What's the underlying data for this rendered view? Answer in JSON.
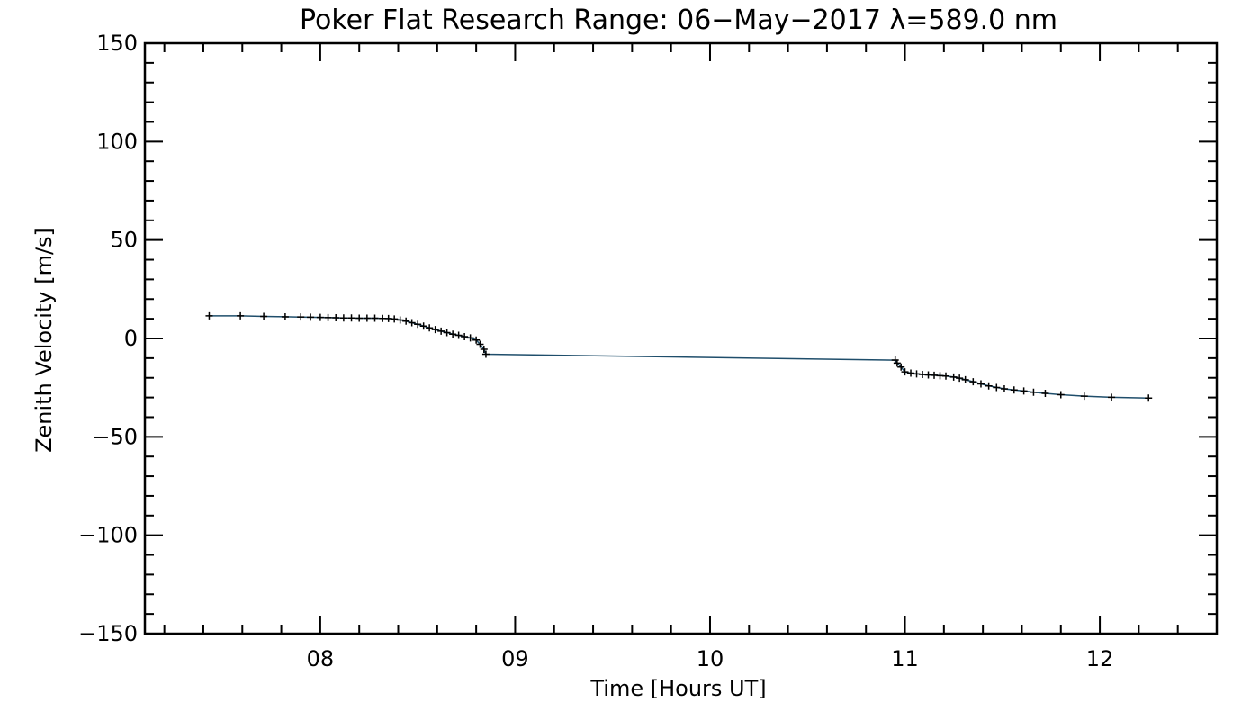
{
  "chart_data": {
    "type": "line",
    "title": "Poker Flat Research Range: 06−May−2017 λ=589.0 nm",
    "xlabel": "Time [Hours UT]",
    "ylabel": "Zenith Velocity [m/s]",
    "xlim": [
      7.1,
      12.6
    ],
    "ylim": [
      -150,
      150
    ],
    "xticks": [
      8,
      9,
      10,
      11,
      12
    ],
    "xtick_labels": [
      "08",
      "09",
      "10",
      "11",
      "12"
    ],
    "yticks": [
      150,
      100,
      50,
      0,
      -50,
      -100,
      -150
    ],
    "ytick_labels": [
      "150",
      "100",
      "50",
      "0",
      "−50",
      "−100",
      "−150"
    ],
    "grid": false,
    "colors": {
      "line": "#1f4e6b",
      "marker": "#000000",
      "axes": "#000000"
    },
    "series": [
      {
        "x": [
          7.43,
          7.59,
          7.71,
          7.82,
          7.9,
          7.95,
          8.0,
          8.04,
          8.08,
          8.12,
          8.16,
          8.2,
          8.24,
          8.28,
          8.32,
          8.35,
          8.38,
          8.41,
          8.44,
          8.47,
          8.5,
          8.53,
          8.56,
          8.59,
          8.62,
          8.65,
          8.68,
          8.71,
          8.74,
          8.77,
          8.8,
          8.82,
          8.84,
          8.85,
          10.95,
          10.96,
          10.98,
          11.0,
          11.03,
          11.06,
          11.09,
          11.12,
          11.15,
          11.18,
          11.21,
          11.25,
          11.28,
          11.31,
          11.35,
          11.39,
          11.43,
          11.47,
          11.51,
          11.56,
          11.61,
          11.66,
          11.72,
          11.8,
          11.92,
          12.06,
          12.25
        ],
        "y": [
          11.5,
          11.5,
          11.2,
          11.0,
          10.9,
          10.8,
          10.7,
          10.6,
          10.5,
          10.4,
          10.4,
          10.3,
          10.3,
          10.3,
          10.2,
          10.1,
          9.9,
          9.4,
          8.8,
          8.0,
          7.2,
          6.3,
          5.4,
          4.5,
          3.7,
          3.0,
          2.2,
          1.6,
          0.9,
          0.3,
          -0.8,
          -3.0,
          -5.5,
          -8.0,
          -11.0,
          -12.5,
          -14.5,
          -17.0,
          -17.6,
          -18.0,
          -18.3,
          -18.5,
          -18.7,
          -18.9,
          -19.1,
          -19.6,
          -20.2,
          -21.0,
          -22.0,
          -23.1,
          -24.1,
          -24.9,
          -25.6,
          -26.2,
          -26.7,
          -27.3,
          -27.9,
          -28.6,
          -29.3,
          -29.9,
          -30.3
        ]
      }
    ]
  }
}
